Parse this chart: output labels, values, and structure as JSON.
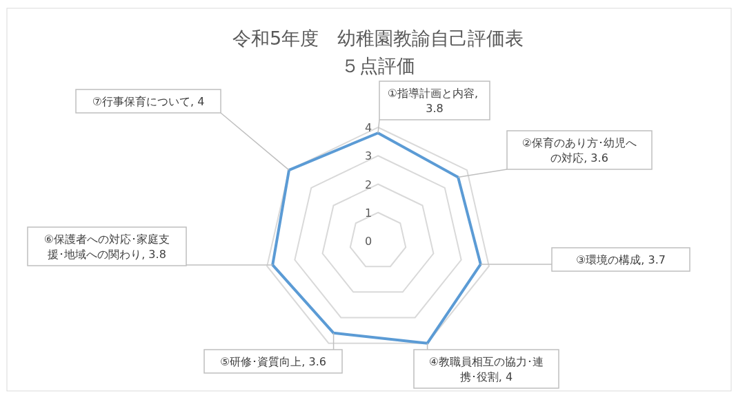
{
  "chart_data": {
    "type": "radar",
    "title": "令和5年度　幼稚園教諭自己評価表",
    "subtitle": "５点評価",
    "categories": [
      "①指導計画と内容, 3.8",
      "②保育のあり方･幼児への対応, 3.6",
      "③環境の構成, 3.7",
      "④教職員相互の協力･連携･役割, 4",
      "⑤研修･資質向上, 3.6",
      "⑥保護者への対応･家庭支援･地域への関わり, 3.8",
      "⑦行事保育について, 4"
    ],
    "series": [
      {
        "color": "#5b9bd5",
        "values": [
          3.8,
          3.6,
          3.7,
          4,
          3.6,
          3.8,
          4
        ]
      }
    ],
    "ylim": [
      0,
      4
    ],
    "yticks": [
      0,
      1,
      2,
      3,
      4
    ],
    "grid": true,
    "marker": "none"
  }
}
